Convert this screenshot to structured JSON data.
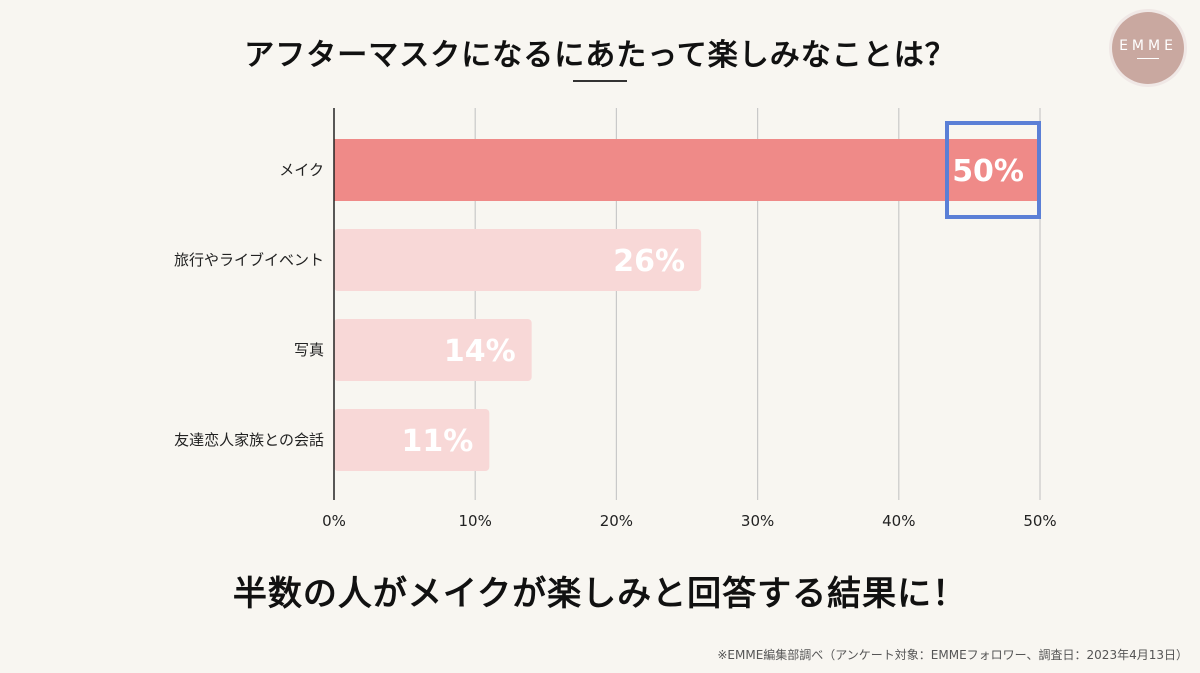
{
  "title": "アフターマスクになるにあたって楽しみなことは？",
  "logo": {
    "text": "EMME"
  },
  "chart_data": {
    "type": "bar",
    "orientation": "horizontal",
    "categories": [
      "メイク",
      "旅行やライブイベント",
      "写真",
      "友達恋人家族との会話"
    ],
    "values": [
      50,
      26,
      14,
      11
    ],
    "value_labels": [
      "50%",
      "26%",
      "14%",
      "11%"
    ],
    "xlim": [
      0,
      50
    ],
    "xticks": [
      "0%",
      "10%",
      "20%",
      "30%",
      "40%",
      "50%"
    ],
    "grid": true,
    "highlight_index": 0,
    "colors": {
      "highlight": "#ef8a88",
      "normal": "#f8d8d7",
      "outline": "#5b7fd6",
      "label": "#ffffff"
    }
  },
  "headline": "半数の人がメイクが楽しみと回答する結果に！",
  "footnote": "※EMME編集部調べ（アンケート対象：EMMEフォロワー、調査日：2023年4月13日）"
}
